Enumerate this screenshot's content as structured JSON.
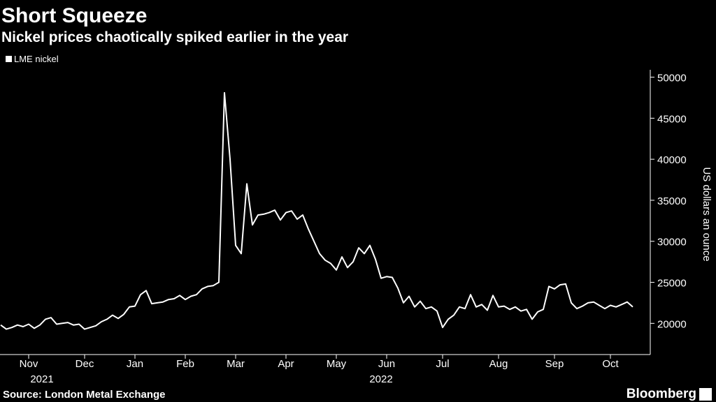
{
  "chart_data": {
    "type": "line",
    "title": "Short Squeeze",
    "subtitle": "Nickel prices chaotically spiked earlier in the year",
    "ylabel": "US dollars an ounce",
    "source": "Source: London Metal Exchange",
    "brand": "Bloomberg",
    "x_group_labels": [
      "2021",
      "2022"
    ],
    "categories": [
      null,
      null,
      null,
      null,
      null,
      "Nov",
      null,
      null,
      null,
      null,
      null,
      null,
      null,
      null,
      null,
      "Dec",
      null,
      null,
      null,
      null,
      null,
      null,
      null,
      null,
      "Jan",
      null,
      null,
      null,
      null,
      null,
      null,
      null,
      null,
      "Feb",
      null,
      null,
      null,
      null,
      null,
      null,
      null,
      null,
      "Mar",
      null,
      null,
      null,
      null,
      null,
      null,
      null,
      null,
      "Apr",
      null,
      null,
      null,
      null,
      null,
      null,
      null,
      null,
      "May",
      null,
      null,
      null,
      null,
      null,
      null,
      null,
      null,
      "Jun",
      null,
      null,
      null,
      null,
      null,
      null,
      null,
      null,
      null,
      "Jul",
      null,
      null,
      null,
      null,
      null,
      null,
      null,
      null,
      null,
      "Aug",
      null,
      null,
      null,
      null,
      null,
      null,
      null,
      null,
      null,
      "Sep",
      null,
      null,
      null,
      null,
      null,
      null,
      null,
      null,
      null,
      "Oct",
      null,
      null,
      null,
      null
    ],
    "series": [
      {
        "name": "LME nickel",
        "color": "#ffffff",
        "values": [
          19800,
          19300,
          19500,
          19800,
          19600,
          19900,
          19400,
          19800,
          20500,
          20700,
          19900,
          20000,
          20100,
          19800,
          19900,
          19300,
          19500,
          19700,
          20200,
          20500,
          21000,
          20600,
          21100,
          22000,
          22100,
          23500,
          24000,
          22400,
          22500,
          22600,
          22900,
          23000,
          23400,
          22900,
          23300,
          23500,
          24200,
          24500,
          24600,
          25000,
          48100,
          40000,
          29500,
          28500,
          37000,
          32000,
          33200,
          33300,
          33500,
          33800,
          32600,
          33500,
          33700,
          32700,
          33200,
          31500,
          30000,
          28500,
          27700,
          27300,
          26500,
          28100,
          26800,
          27500,
          29200,
          28500,
          29500,
          27800,
          25500,
          25700,
          25600,
          24300,
          22500,
          23300,
          22000,
          22700,
          21800,
          22000,
          21500,
          19500,
          20500,
          21000,
          22000,
          21800,
          23500,
          22000,
          22300,
          21600,
          23400,
          22000,
          22100,
          21700,
          22000,
          21500,
          21700,
          20500,
          21400,
          21700,
          24500,
          24200,
          24700,
          24800,
          22500,
          21800,
          22100,
          22500,
          22600,
          22200,
          21800,
          22200,
          22000,
          22300,
          22600,
          22000
        ]
      }
    ],
    "ylim": [
      16200,
      50900
    ],
    "yticks": [
      20000,
      25000,
      30000,
      35000,
      40000,
      45000,
      50000
    ],
    "grid": false
  }
}
